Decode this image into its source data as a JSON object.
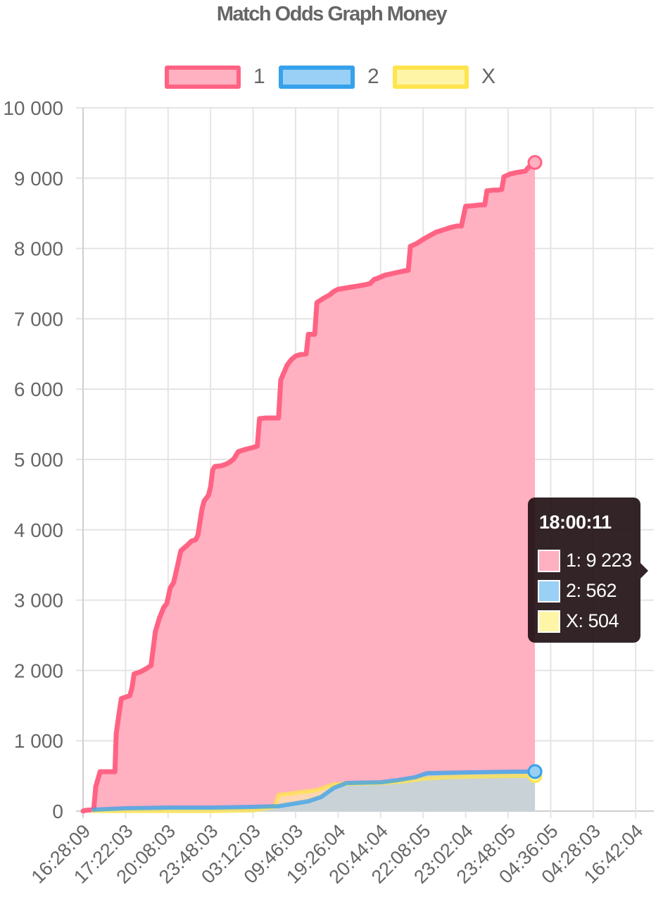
{
  "chart_data": {
    "type": "area",
    "title": "Match Odds Graph Money",
    "xlabel": "",
    "ylabel": "",
    "ylim": [
      0,
      10000
    ],
    "y_ticks": [
      0,
      1000,
      2000,
      3000,
      4000,
      5000,
      6000,
      7000,
      8000,
      9000,
      10000
    ],
    "y_tick_labels": [
      "0",
      "1 000",
      "2 000",
      "3 000",
      "4 000",
      "5 000",
      "6 000",
      "7 000",
      "8 000",
      "9 000",
      "10 000"
    ],
    "x_tick_labels": [
      "16:28:09",
      "17:22:03",
      "20:08:03",
      "23:48:03",
      "03:12:03",
      "09:46:03",
      "19:26:04",
      "20:44:04",
      "22:08:05",
      "23:02:04",
      "23:48:05",
      "04:36:05",
      "04:28:03",
      "16:42:04"
    ],
    "grid": true,
    "legend_position": "top",
    "series": [
      {
        "name": "1",
        "color": "#ff6384",
        "fill": "#ffb0c1",
        "points": [
          [
            0,
            0
          ],
          [
            0.05,
            10
          ],
          [
            0.25,
            20
          ],
          [
            0.3,
            350
          ],
          [
            0.4,
            560
          ],
          [
            0.55,
            560
          ],
          [
            0.75,
            560
          ],
          [
            0.78,
            1100
          ],
          [
            0.85,
            1400
          ],
          [
            0.9,
            1600
          ],
          [
            1.1,
            1640
          ],
          [
            1.15,
            1750
          ],
          [
            1.2,
            1950
          ],
          [
            1.35,
            1980
          ],
          [
            1.5,
            2030
          ],
          [
            1.6,
            2070
          ],
          [
            1.7,
            2550
          ],
          [
            1.8,
            2750
          ],
          [
            1.9,
            2900
          ],
          [
            1.97,
            2950
          ],
          [
            2.05,
            3170
          ],
          [
            2.13,
            3250
          ],
          [
            2.2,
            3430
          ],
          [
            2.3,
            3700
          ],
          [
            2.45,
            3780
          ],
          [
            2.55,
            3840
          ],
          [
            2.65,
            3860
          ],
          [
            2.7,
            3920
          ],
          [
            2.8,
            4300
          ],
          [
            2.85,
            4410
          ],
          [
            2.95,
            4490
          ],
          [
            3.0,
            4610
          ],
          [
            3.05,
            4850
          ],
          [
            3.1,
            4900
          ],
          [
            3.25,
            4910
          ],
          [
            3.35,
            4930
          ],
          [
            3.45,
            4960
          ],
          [
            3.55,
            5010
          ],
          [
            3.65,
            5110
          ],
          [
            3.8,
            5140
          ],
          [
            4.0,
            5170
          ],
          [
            4.1,
            5190
          ],
          [
            4.15,
            5580
          ],
          [
            4.3,
            5590
          ],
          [
            4.5,
            5590
          ],
          [
            4.6,
            5590
          ],
          [
            4.65,
            6130
          ],
          [
            4.8,
            6340
          ],
          [
            4.9,
            6420
          ],
          [
            5.0,
            6470
          ],
          [
            5.1,
            6490
          ],
          [
            5.25,
            6500
          ],
          [
            5.3,
            6780
          ],
          [
            5.45,
            6780
          ],
          [
            5.5,
            7230
          ],
          [
            5.65,
            7290
          ],
          [
            5.8,
            7340
          ],
          [
            5.9,
            7390
          ],
          [
            6.0,
            7420
          ],
          [
            6.2,
            7440
          ],
          [
            6.4,
            7460
          ],
          [
            6.6,
            7480
          ],
          [
            6.75,
            7500
          ],
          [
            6.85,
            7560
          ],
          [
            6.95,
            7580
          ],
          [
            7.1,
            7620
          ],
          [
            7.25,
            7640
          ],
          [
            7.4,
            7660
          ],
          [
            7.55,
            7680
          ],
          [
            7.65,
            7690
          ],
          [
            7.7,
            8030
          ],
          [
            7.85,
            8070
          ],
          [
            8.0,
            8130
          ],
          [
            8.15,
            8180
          ],
          [
            8.3,
            8230
          ],
          [
            8.5,
            8270
          ],
          [
            8.65,
            8300
          ],
          [
            8.8,
            8320
          ],
          [
            8.9,
            8320
          ],
          [
            9.0,
            8600
          ],
          [
            9.2,
            8610
          ],
          [
            9.35,
            8620
          ],
          [
            9.45,
            8620
          ],
          [
            9.5,
            8820
          ],
          [
            9.65,
            8830
          ],
          [
            9.75,
            8830
          ],
          [
            9.85,
            8840
          ],
          [
            9.9,
            9020
          ],
          [
            10.05,
            9060
          ],
          [
            10.2,
            9080
          ],
          [
            10.3,
            9090
          ],
          [
            10.4,
            9100
          ],
          [
            10.55,
            9200
          ],
          [
            10.63,
            9223
          ]
        ]
      },
      {
        "name": "2",
        "color": "#36a2eb",
        "fill": "#9ad0f5",
        "points": [
          [
            0.25,
            20
          ],
          [
            1.0,
            40
          ],
          [
            2.0,
            50
          ],
          [
            3.0,
            50
          ],
          [
            4.0,
            60
          ],
          [
            4.6,
            70
          ],
          [
            4.9,
            100
          ],
          [
            5.3,
            140
          ],
          [
            5.6,
            200
          ],
          [
            5.9,
            330
          ],
          [
            6.2,
            400
          ],
          [
            7.0,
            410
          ],
          [
            7.4,
            440
          ],
          [
            7.8,
            480
          ],
          [
            8.1,
            540
          ],
          [
            9.0,
            550
          ],
          [
            10.0,
            560
          ],
          [
            10.63,
            562
          ]
        ]
      },
      {
        "name": "X",
        "color": "#ffe44d",
        "fill": "#fff5a6",
        "points": [
          [
            0.25,
            0
          ],
          [
            1.0,
            0
          ],
          [
            2.0,
            0
          ],
          [
            3.0,
            0
          ],
          [
            4.0,
            10
          ],
          [
            4.5,
            60
          ],
          [
            4.6,
            230
          ],
          [
            5.0,
            260
          ],
          [
            5.5,
            300
          ],
          [
            5.9,
            380
          ],
          [
            6.2,
            390
          ],
          [
            7.0,
            400
          ],
          [
            7.5,
            420
          ],
          [
            8.0,
            460
          ],
          [
            8.5,
            480
          ],
          [
            9.0,
            490
          ],
          [
            10.0,
            500
          ],
          [
            10.63,
            504
          ]
        ]
      }
    ]
  },
  "tooltip": {
    "title": "18:00:11",
    "rows": [
      {
        "text": "1: 9 223",
        "color": "#ffb0c1"
      },
      {
        "text": "2: 562",
        "color": "#9ad0f5"
      },
      {
        "text": "X: 504",
        "color": "#fff5a6"
      }
    ]
  }
}
